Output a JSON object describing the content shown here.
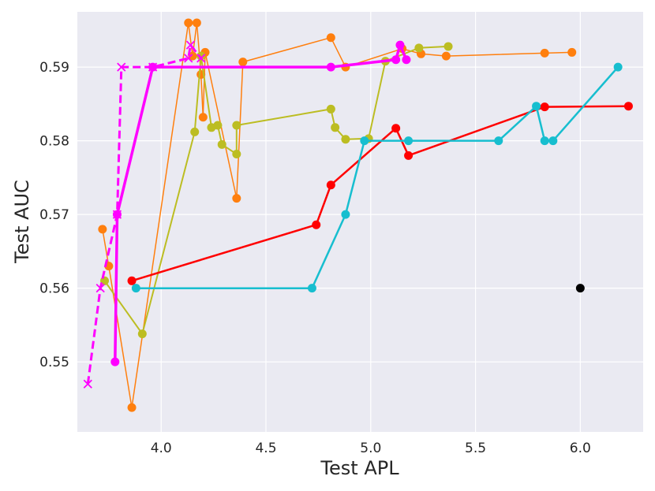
{
  "chart_data": {
    "type": "line",
    "title": "",
    "xlabel": "Test APL",
    "ylabel": "Test AUC",
    "xlim": [
      3.6,
      6.3
    ],
    "ylim": [
      0.5405,
      0.5975
    ],
    "xticks": [
      4.0,
      4.5,
      5.0,
      5.5,
      6.0
    ],
    "xtick_labels": [
      "4.0",
      "4.5",
      "5.0",
      "5.5",
      "6.0"
    ],
    "yticks": [
      0.55,
      0.56,
      0.57,
      0.58,
      0.59
    ],
    "ytick_labels": [
      "0.55",
      "0.56",
      "0.57",
      "0.58",
      "0.59"
    ],
    "grid": true,
    "background_color": "#eaeaf2",
    "series": [
      {
        "color": "#ff7f0e",
        "marker": "circle",
        "line": "solid",
        "width": 1.5,
        "points": [
          [
            3.72,
            0.568
          ],
          [
            3.75,
            0.563
          ],
          [
            3.86,
            0.5438
          ],
          [
            4.13,
            0.596
          ],
          [
            4.15,
            0.5915
          ],
          [
            4.17,
            0.596
          ],
          [
            4.19,
            0.589
          ],
          [
            4.2,
            0.5832
          ],
          [
            4.21,
            0.592
          ],
          [
            4.36,
            0.5722
          ],
          [
            4.39,
            0.5907
          ],
          [
            4.81,
            0.594
          ],
          [
            4.88,
            0.59
          ],
          [
            5.15,
            0.5925
          ],
          [
            5.24,
            0.5918
          ],
          [
            5.36,
            0.5915
          ],
          [
            5.83,
            0.5919
          ],
          [
            5.96,
            0.592
          ]
        ]
      },
      {
        "color": "#bcbd22",
        "marker": "circle",
        "line": "solid",
        "width": 2,
        "points": [
          [
            3.73,
            0.561
          ],
          [
            3.91,
            0.5538
          ],
          [
            4.16,
            0.5812
          ],
          [
            4.19,
            0.5915
          ],
          [
            4.24,
            0.5818
          ],
          [
            4.27,
            0.5821
          ],
          [
            4.29,
            0.5795
          ],
          [
            4.36,
            0.5782
          ],
          [
            4.36,
            0.5821
          ],
          [
            4.81,
            0.5843
          ],
          [
            4.83,
            0.5818
          ],
          [
            4.88,
            0.5802
          ],
          [
            4.99,
            0.5803
          ],
          [
            5.07,
            0.5908
          ],
          [
            5.23,
            0.5926
          ],
          [
            5.37,
            0.5928
          ]
        ]
      },
      {
        "color": "#ff0000",
        "marker": "circle",
        "line": "solid",
        "width": 2.5,
        "points": [
          [
            3.86,
            0.561
          ],
          [
            4.74,
            0.5686
          ],
          [
            4.81,
            0.574
          ],
          [
            5.12,
            0.5817
          ],
          [
            5.18,
            0.578
          ],
          [
            5.83,
            0.5846
          ],
          [
            6.23,
            0.5847
          ]
        ]
      },
      {
        "color": "#17becf",
        "marker": "circle",
        "line": "solid",
        "width": 2.5,
        "points": [
          [
            3.88,
            0.56
          ],
          [
            4.72,
            0.56
          ],
          [
            4.88,
            0.57
          ],
          [
            4.97,
            0.58
          ],
          [
            5.18,
            0.58
          ],
          [
            5.61,
            0.58
          ],
          [
            5.79,
            0.5847
          ],
          [
            5.83,
            0.58
          ],
          [
            5.87,
            0.58
          ],
          [
            6.18,
            0.59
          ]
        ]
      },
      {
        "color": "#ff00ff",
        "marker": "circle",
        "line": "solid",
        "width": 3.5,
        "points": [
          [
            3.78,
            0.55
          ],
          [
            3.79,
            0.57
          ],
          [
            3.96,
            0.59
          ],
          [
            4.81,
            0.59
          ],
          [
            5.12,
            0.591
          ],
          [
            5.14,
            0.593
          ],
          [
            5.17,
            0.591
          ]
        ]
      },
      {
        "color": "#ff00ff",
        "marker": "x",
        "line": "dashed",
        "width": 3,
        "points": [
          [
            3.65,
            0.547
          ],
          [
            3.71,
            0.56
          ],
          [
            3.79,
            0.57
          ],
          [
            3.81,
            0.59
          ],
          [
            3.96,
            0.59
          ],
          [
            4.13,
            0.5912
          ],
          [
            4.14,
            0.593
          ],
          [
            4.19,
            0.5912
          ]
        ]
      },
      {
        "color": "#000000",
        "marker": "circle",
        "line": "none",
        "width": 0,
        "points": [
          [
            6.0,
            0.56
          ]
        ]
      }
    ]
  }
}
